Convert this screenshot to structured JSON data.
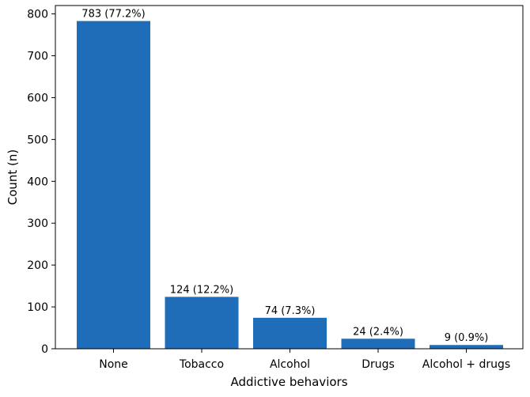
{
  "chart_data": {
    "type": "bar",
    "categories": [
      "None",
      "Tobacco",
      "Alcohol",
      "Drugs",
      "Alcohol + drugs"
    ],
    "values": [
      783,
      124,
      74,
      24,
      9
    ],
    "data_labels": [
      "783 (77.2%)",
      "124 (12.2%)",
      "74 (7.3%)",
      "24 (2.4%)",
      "9 (0.9%)"
    ],
    "title": "",
    "xlabel": "Addictive behaviors",
    "ylabel": "Count (n)",
    "ylim": [
      0,
      820
    ],
    "yticks": [
      0,
      100,
      200,
      300,
      400,
      500,
      600,
      700,
      800
    ],
    "grid": false,
    "bar_color": "#1f6db8"
  }
}
